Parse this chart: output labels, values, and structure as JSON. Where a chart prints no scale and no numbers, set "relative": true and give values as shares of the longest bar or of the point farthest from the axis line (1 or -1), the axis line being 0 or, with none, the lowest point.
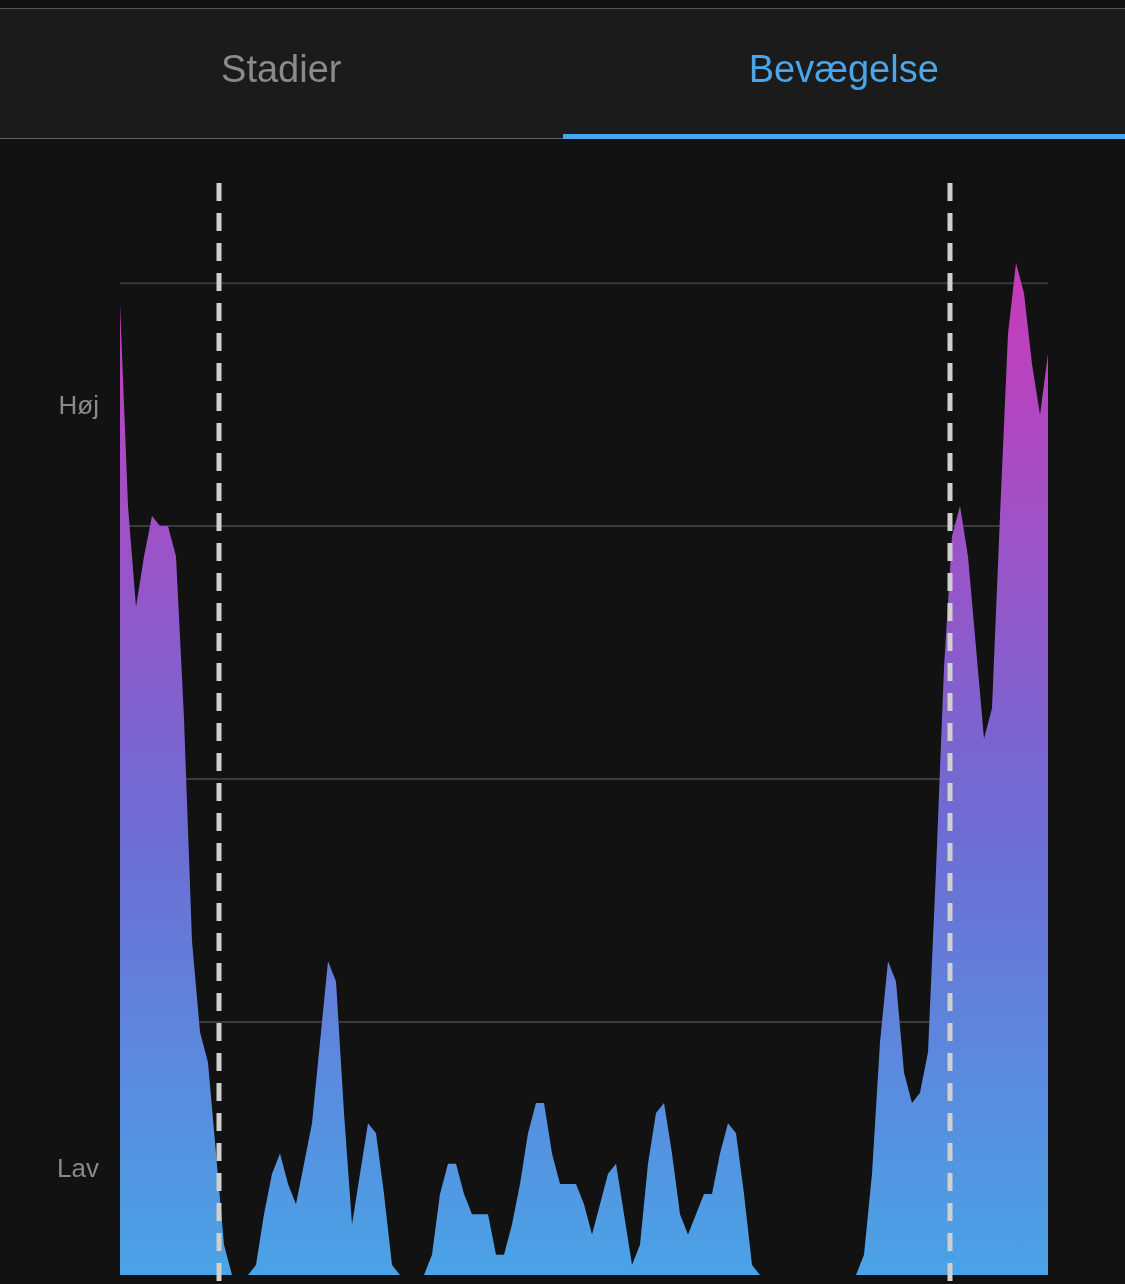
{
  "chart_data": {
    "type": "area",
    "relative": true,
    "tick_labels": false,
    "legend": false,
    "annotations": [
      "Stadier",
      "Bevægelse",
      "Høj",
      "Lav"
    ],
    "categories": [
      null,
      null,
      null,
      null,
      null,
      null,
      null,
      null,
      null,
      null,
      null,
      null,
      null,
      null,
      null,
      null,
      null,
      null,
      null,
      null,
      null,
      null,
      null,
      null,
      null,
      null,
      null,
      null,
      null,
      null,
      null,
      null,
      null,
      null,
      null,
      null,
      null,
      null,
      null,
      null,
      null,
      null,
      null,
      null,
      null,
      null,
      null,
      null,
      null,
      null,
      null,
      null,
      null,
      null,
      null,
      null,
      null,
      null,
      null,
      null,
      null,
      null,
      null,
      null,
      null,
      null,
      null,
      null,
      null,
      null,
      null,
      null,
      null,
      null,
      null,
      null,
      null,
      null,
      null,
      null,
      null,
      null,
      null,
      null,
      null,
      null,
      null,
      null,
      null,
      null,
      null,
      null,
      null,
      null,
      null,
      null,
      null,
      null,
      null,
      null,
      null,
      null,
      null,
      null,
      null,
      null,
      null,
      null,
      null,
      null,
      null,
      null,
      null,
      null,
      null,
      null,
      null
    ],
    "ref_lines": [
      {
        "axis": "y",
        "value": 0.98,
        "color": "#3a3a3a",
        "line_style": "solid"
      },
      {
        "axis": "y",
        "value": 0.74,
        "color": "#3a3a3a",
        "line_style": "solid"
      },
      {
        "axis": "y",
        "value": 0.49,
        "color": "#3a3a3a",
        "line_style": "solid"
      },
      {
        "axis": "y",
        "value": 0.25,
        "color": "#3a3a3a",
        "line_style": "solid"
      }
    ],
    "series": [
      {
        "color": "#4aa3e6",
        "values": [
          0.96,
          0.76,
          0.66,
          0.71,
          0.75,
          0.74,
          0.74,
          0.71,
          0.55,
          0.33,
          0.24,
          0.21,
          0.12,
          0.03,
          0,
          0,
          0,
          0.01,
          0.06,
          0.1,
          0.12,
          0.09,
          0.07,
          0.11,
          0.15,
          0.23,
          0.31,
          0.29,
          0.16,
          0.05,
          0.1,
          0.15,
          0.14,
          0.08,
          0.01,
          0,
          0,
          0,
          0,
          0.02,
          0.08,
          0.11,
          0.11,
          0.08,
          0.06,
          0.06,
          0.06,
          0.02,
          0.02,
          0.05,
          0.09,
          0.14,
          0.17,
          0.17,
          0.12,
          0.09,
          0.09,
          0.09,
          0.07,
          0.04,
          0.07,
          0.1,
          0.11,
          0.06,
          0.01,
          0.03,
          0.11,
          0.16,
          0.17,
          0.12,
          0.06,
          0.04,
          0.06,
          0.08,
          0.08,
          0.12,
          0.15,
          0.14,
          0.08,
          0.01,
          0,
          0,
          0,
          0,
          0,
          0,
          0,
          0,
          0,
          0,
          0,
          0,
          0,
          0.02,
          0.1,
          0.23,
          0.31,
          0.29,
          0.2,
          0.17,
          0.18,
          0.22,
          0.4,
          0.6,
          0.73,
          0.76,
          0.71,
          0.62,
          0.53,
          0.56,
          0.75,
          0.93,
          1.0,
          0.97,
          0.9,
          0.85,
          0.91
        ]
      }
    ]
  }
}
